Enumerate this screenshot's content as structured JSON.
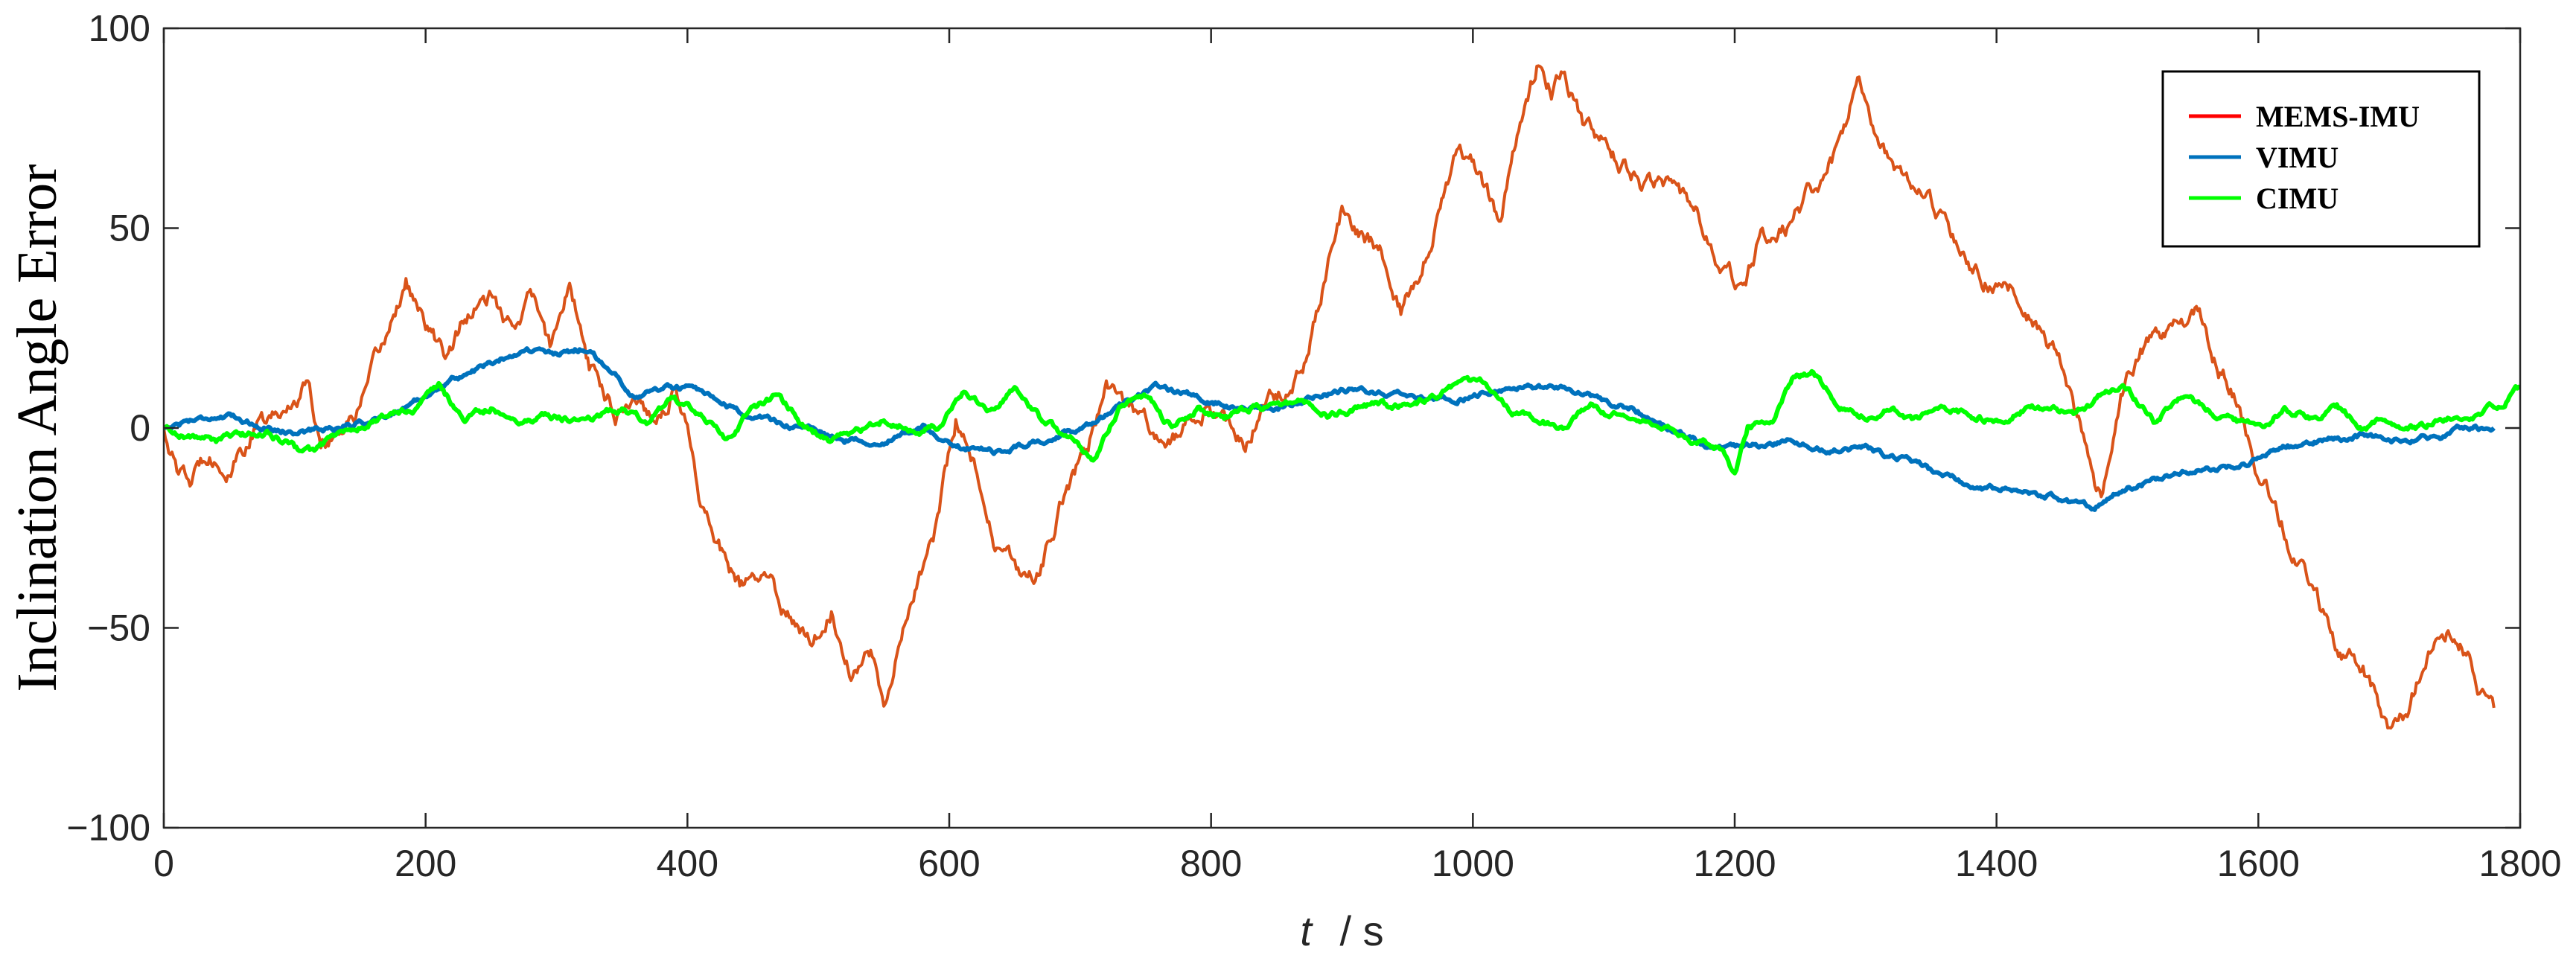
{
  "chart_data": {
    "type": "line",
    "title": "",
    "xlabel": {
      "variable": "t",
      "unit": "/ s"
    },
    "ylabel": "Inclination Angle Error",
    "xlim": [
      0,
      1800
    ],
    "ylim": [
      -100,
      100
    ],
    "xticks": [
      0,
      200,
      400,
      600,
      800,
      1000,
      1200,
      1400,
      1600,
      1800
    ],
    "yticks": [
      -100,
      -50,
      0,
      50,
      100
    ],
    "ytick_labels": [
      "−100",
      "−50",
      "0",
      "50",
      "100"
    ],
    "grid": false,
    "legend_position": "top-right",
    "series": [
      {
        "name": "MEMS-IMU",
        "color": "#d95319",
        "legend_color": "#ff0000",
        "x": [
          0,
          10,
          20,
          35,
          50,
          70,
          90,
          110,
          120,
          135,
          150,
          165,
          185,
          200,
          215,
          230,
          250,
          265,
          280,
          295,
          310,
          325,
          345,
          360,
          375,
          390,
          400,
          410,
          425,
          440,
          460,
          480,
          495,
          510,
          525,
          540,
          550,
          560,
          575,
          590,
          605,
          620,
          635,
          650,
          660,
          675,
          690,
          705,
          720,
          735,
          750,
          765,
          780,
          795,
          810,
          825,
          840,
          855,
          870,
          885,
          900,
          915,
          930,
          945,
          960,
          975,
          990,
          1005,
          1020,
          1035,
          1050,
          1060,
          1070,
          1085,
          1100,
          1115,
          1130,
          1150,
          1170,
          1190,
          1205,
          1220,
          1240,
          1260,
          1280,
          1295,
          1310,
          1330,
          1350,
          1370,
          1390,
          1410,
          1430,
          1450,
          1465,
          1475,
          1480,
          1495,
          1510,
          1525,
          1540,
          1555,
          1565,
          1580,
          1600,
          1620,
          1640,
          1660,
          1680,
          1700,
          1715,
          1730,
          1745,
          1760,
          1770,
          1780
        ],
        "y": [
          0,
          -10,
          -14,
          -5,
          -12,
          0,
          3,
          12,
          -3,
          0,
          5,
          18,
          37,
          25,
          18,
          28,
          32,
          24,
          34,
          20,
          37,
          15,
          5,
          8,
          3,
          10,
          0,
          -18,
          -30,
          -40,
          -38,
          -48,
          -52,
          -45,
          -60,
          -55,
          -70,
          -55,
          -40,
          -25,
          2,
          -10,
          -30,
          -35,
          -40,
          -30,
          -15,
          -5,
          10,
          5,
          2,
          -5,
          0,
          5,
          0,
          -5,
          5,
          10,
          15,
          35,
          55,
          48,
          45,
          30,
          40,
          55,
          70,
          65,
          50,
          75,
          92,
          85,
          90,
          75,
          70,
          65,
          60,
          62,
          55,
          40,
          35,
          48,
          50,
          60,
          70,
          88,
          70,
          60,
          55,
          45,
          38,
          35,
          25,
          15,
          0,
          -15,
          -18,
          10,
          20,
          22,
          25,
          30,
          18,
          10,
          -10,
          -25,
          -40,
          -55,
          -60,
          -75,
          -70,
          -55,
          -50,
          -55,
          -65,
          -70
        ]
      },
      {
        "name": "VIMU",
        "color": "#0072bd",
        "x": [
          0,
          20,
          40,
          60,
          80,
          100,
          130,
          160,
          190,
          220,
          250,
          275,
          300,
          320,
          340,
          360,
          380,
          400,
          430,
          460,
          490,
          520,
          550,
          580,
          610,
          640,
          670,
          700,
          730,
          760,
          790,
          820,
          850,
          880,
          910,
          940,
          970,
          1000,
          1030,
          1060,
          1090,
          1120,
          1150,
          1180,
          1210,
          1240,
          1270,
          1300,
          1330,
          1360,
          1390,
          1420,
          1450,
          1475,
          1500,
          1530,
          1560,
          1590,
          1620,
          1650,
          1680,
          1710,
          1740,
          1760,
          1780
        ],
        "y": [
          0,
          2,
          3,
          2,
          0,
          -1,
          0,
          2,
          6,
          12,
          16,
          20,
          18,
          20,
          15,
          8,
          10,
          10,
          5,
          2,
          0,
          -3,
          -3,
          0,
          -5,
          -6,
          -3,
          0,
          5,
          10,
          8,
          5,
          5,
          8,
          10,
          8,
          7,
          8,
          10,
          10,
          8,
          5,
          0,
          -5,
          -5,
          -3,
          -5,
          -5,
          -8,
          -12,
          -15,
          -15,
          -18,
          -20,
          -15,
          -12,
          -10,
          -9,
          -5,
          -3,
          -2,
          -3,
          -2,
          0,
          0
        ]
      },
      {
        "name": "CIMU",
        "color": "#00ff00",
        "x": [
          0,
          20,
          40,
          60,
          80,
          100,
          115,
          130,
          150,
          170,
          190,
          210,
          230,
          250,
          270,
          290,
          310,
          330,
          350,
          370,
          390,
          410,
          430,
          450,
          470,
          490,
          510,
          530,
          550,
          570,
          590,
          610,
          630,
          650,
          670,
          690,
          710,
          730,
          750,
          770,
          790,
          810,
          830,
          850,
          870,
          890,
          910,
          930,
          950,
          970,
          990,
          1010,
          1030,
          1050,
          1070,
          1090,
          1110,
          1130,
          1150,
          1170,
          1190,
          1200,
          1210,
          1230,
          1245,
          1260,
          1280,
          1300,
          1320,
          1340,
          1360,
          1380,
          1400,
          1420,
          1440,
          1460,
          1480,
          1500,
          1520,
          1540,
          1560,
          1580,
          1600,
          1620,
          1640,
          1660,
          1680,
          1700,
          1720,
          1740,
          1760,
          1780,
          1800
        ],
        "y": [
          0,
          -2,
          -3,
          -2,
          -1,
          -5,
          -6,
          -2,
          0,
          3,
          5,
          10,
          2,
          5,
          2,
          3,
          2,
          3,
          5,
          2,
          8,
          3,
          -3,
          5,
          8,
          0,
          -3,
          -1,
          2,
          0,
          0,
          8,
          5,
          10,
          2,
          -2,
          -8,
          5,
          8,
          0,
          5,
          3,
          5,
          5,
          7,
          3,
          5,
          6,
          5,
          8,
          10,
          12,
          3,
          2,
          0,
          5,
          3,
          1,
          0,
          -3,
          -5,
          -12,
          0,
          2,
          12,
          14,
          5,
          3,
          5,
          2,
          5,
          3,
          2,
          5,
          5,
          3,
          8,
          10,
          2,
          8,
          5,
          2,
          0,
          5,
          3,
          5,
          0,
          2,
          0,
          2,
          3,
          5,
          10
        ]
      }
    ]
  }
}
